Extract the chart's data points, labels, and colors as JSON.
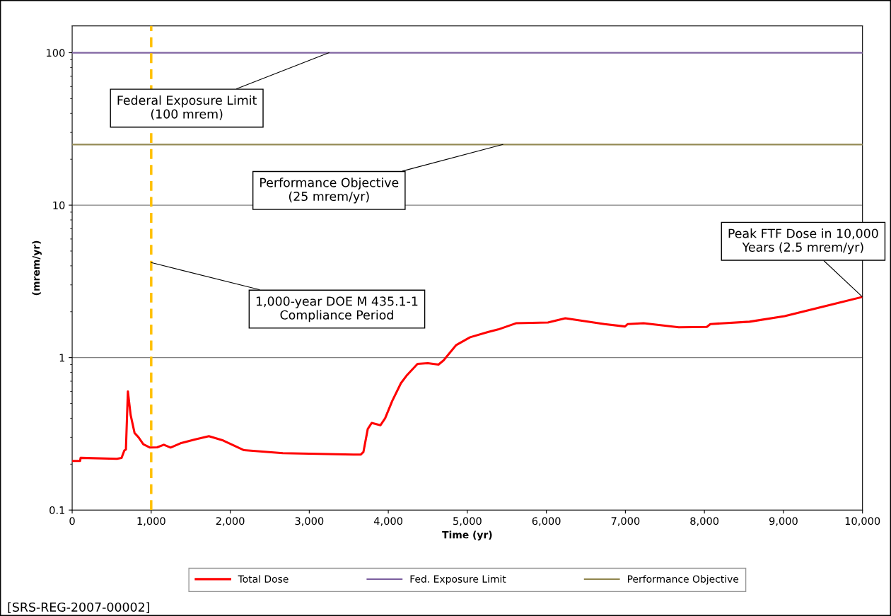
{
  "chart_data": {
    "type": "line",
    "xlabel": "Time (yr)",
    "ylabel": "(mrem/yr)",
    "log": "y",
    "grid": "y",
    "legend": "bottom",
    "marker": "none",
    "line_style": "solid",
    "xlim": [
      0,
      10000
    ],
    "xticks": [
      {
        "value": 0,
        "label": "0"
      },
      {
        "value": 1000,
        "label": "1,000"
      },
      {
        "value": 2000,
        "label": "2,000"
      },
      {
        "value": 3000,
        "label": "3,000"
      },
      {
        "value": 4000,
        "label": "4,000"
      },
      {
        "value": 5000,
        "label": "5,000"
      },
      {
        "value": 6000,
        "label": "6,000"
      },
      {
        "value": 7000,
        "label": "7,000"
      },
      {
        "value": 8000,
        "label": "8,000"
      },
      {
        "value": 9000,
        "label": "9,000"
      },
      {
        "value": 10000,
        "label": "10,000"
      }
    ],
    "ylim": [
      0.1,
      150
    ],
    "yticks": [
      0.1,
      1,
      10,
      100
    ],
    "series": [
      {
        "name": "Total Dose",
        "color": "#ff0000",
        "x": [
          0,
          100,
          107,
          565,
          625,
          660,
          680,
          705,
          740,
          790,
          840,
          900,
          985,
          1075,
          1160,
          1245,
          1370,
          1550,
          1730,
          1910,
          2175,
          2665,
          3560,
          3650,
          3685,
          3740,
          3790,
          3900,
          3960,
          4050,
          4160,
          4230,
          4370,
          4500,
          4635,
          4700,
          4860,
          5035,
          5260,
          5390,
          5615,
          6020,
          6240,
          6735,
          6995,
          7030,
          7230,
          7675,
          8030,
          8075,
          8570,
          9015,
          9550,
          10000
        ],
        "values": [
          0.21,
          0.21,
          0.22,
          0.217,
          0.22,
          0.246,
          0.25,
          0.6,
          0.42,
          0.32,
          0.3,
          0.27,
          0.257,
          0.258,
          0.268,
          0.257,
          0.274,
          0.29,
          0.305,
          0.286,
          0.247,
          0.236,
          0.231,
          0.231,
          0.24,
          0.34,
          0.373,
          0.36,
          0.4,
          0.52,
          0.68,
          0.76,
          0.91,
          0.92,
          0.9,
          0.96,
          1.21,
          1.36,
          1.47,
          1.53,
          1.68,
          1.7,
          1.81,
          1.66,
          1.6,
          1.66,
          1.68,
          1.58,
          1.59,
          1.66,
          1.72,
          1.87,
          2.19,
          2.5
        ]
      },
      {
        "name": "Fed. Exposure Limit",
        "color": "#8064a2",
        "x": [
          0,
          10000
        ],
        "values": [
          100,
          100
        ]
      },
      {
        "name": "Performance Objective",
        "color": "#948a54",
        "x": [
          0,
          10000
        ],
        "values": [
          25,
          25
        ]
      }
    ],
    "ref_lines": [
      {
        "axis": "x",
        "value": 1000,
        "color": "#ffc000",
        "line_style": "dashed"
      }
    ],
    "annotations": [
      {
        "text": "Federal Exposure Limit\n(100 mrem)",
        "x": 3250,
        "y": 100
      },
      {
        "text": "Performance Objective\n(25 mrem/yr)",
        "x": 5450,
        "y": 25
      },
      {
        "text": "1,000-year DOE M 435.1-1\nCompliance Period",
        "x": 1000,
        "y": 4.2
      },
      {
        "text": "Peak FTF Dose in 10,000\nYears (2.5 mrem/yr)",
        "x": 10000,
        "y": 2.5
      },
      "[SRS-REG-2007-00002]"
    ]
  }
}
